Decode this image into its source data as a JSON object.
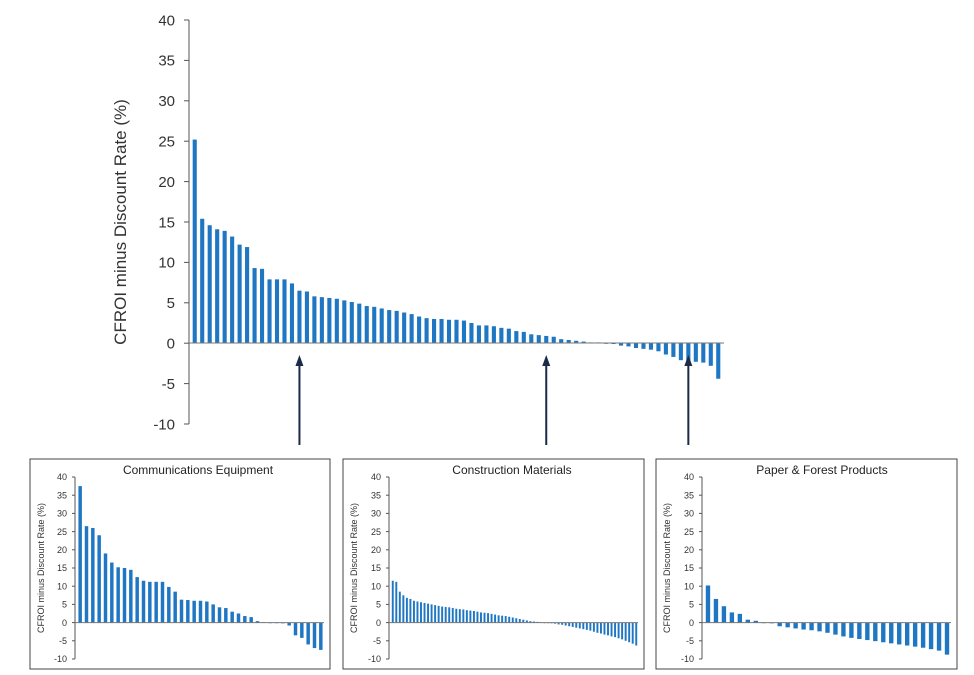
{
  "chart_data": [
    {
      "id": "main",
      "type": "bar",
      "title": "",
      "ylabel": "CFROI minus Discount Rate (%)",
      "ylim": [
        -10,
        40
      ],
      "yticks": [
        "40",
        "35",
        "30",
        "25",
        "20",
        "15",
        "10",
        "5",
        "0",
        "-5",
        "-10"
      ],
      "grid": false,
      "bar_color": "#1f77c4",
      "values": [
        25.2,
        15.4,
        14.6,
        14.1,
        13.9,
        13.2,
        12.2,
        11.9,
        9.3,
        9.2,
        7.9,
        7.9,
        7.9,
        7.4,
        6.5,
        6.4,
        5.8,
        5.7,
        5.6,
        5.5,
        5.3,
        5.1,
        4.9,
        4.6,
        4.5,
        4.3,
        4.1,
        4.0,
        3.8,
        3.6,
        3.3,
        3.1,
        3.0,
        3.0,
        2.9,
        2.9,
        2.8,
        2.5,
        2.2,
        2.2,
        2.1,
        1.9,
        1.8,
        1.5,
        1.4,
        1.1,
        1.0,
        0.9,
        0.8,
        0.5,
        0.4,
        0.3,
        0.2,
        0.1,
        0.1,
        0.0,
        -0.1,
        -0.3,
        -0.4,
        -0.6,
        -0.7,
        -0.8,
        -1.0,
        -1.4,
        -1.7,
        -2.1,
        -2.3,
        -2.3,
        -2.4,
        -2.8,
        -4.4
      ],
      "highlight_indices": [
        14,
        47,
        66
      ]
    },
    {
      "id": "comm",
      "type": "bar",
      "title": "Communications Equipment",
      "ylabel": "CFROI minus Discount Rate (%)",
      "ylim": [
        -10,
        40
      ],
      "yticks": [
        "40",
        "35",
        "30",
        "25",
        "20",
        "15",
        "10",
        "5",
        "0",
        "-5",
        "-10"
      ],
      "grid": false,
      "bar_color": "#1f77c4",
      "values": [
        37.5,
        26.5,
        26.0,
        24.0,
        19.0,
        16.5,
        15.2,
        15.0,
        14.5,
        12.5,
        11.5,
        11.2,
        11.2,
        11.2,
        9.8,
        8.5,
        6.3,
        6.2,
        6.0,
        6.0,
        5.8,
        5.0,
        4.2,
        4.0,
        3.0,
        2.5,
        1.8,
        1.5,
        0.4,
        0.1,
        -0.1,
        0.0,
        -0.2,
        -0.8,
        -3.5,
        -4.2,
        -6.0,
        -7.0,
        -7.5
      ]
    },
    {
      "id": "constr",
      "type": "bar",
      "title": "Construction Materials",
      "ylabel": "CFROI minus Discount Rate (%)",
      "ylim": [
        -10,
        40
      ],
      "yticks": [
        "40",
        "35",
        "30",
        "25",
        "20",
        "15",
        "10",
        "5",
        "0",
        "-5",
        "-10"
      ],
      "grid": false,
      "bar_color": "#1f77c4",
      "values": [
        11.5,
        11.2,
        8.5,
        7.5,
        6.8,
        6.5,
        6.0,
        5.8,
        5.6,
        5.4,
        5.2,
        5.0,
        4.8,
        4.6,
        4.4,
        4.3,
        4.2,
        4.0,
        3.8,
        3.7,
        3.6,
        3.4,
        3.3,
        3.2,
        3.0,
        2.8,
        2.7,
        2.6,
        2.4,
        2.2,
        2.0,
        1.9,
        1.8,
        1.6,
        1.4,
        1.2,
        1.0,
        0.8,
        0.6,
        0.4,
        0.3,
        0.2,
        0.1,
        0.0,
        -0.1,
        -0.2,
        -0.3,
        -0.5,
        -0.6,
        -0.8,
        -1.0,
        -1.2,
        -1.4,
        -1.6,
        -1.8,
        -2.0,
        -2.2,
        -2.5,
        -2.8,
        -3.0,
        -3.3,
        -3.5,
        -3.8,
        -4.0,
        -4.3,
        -4.6,
        -5.0,
        -5.4,
        -5.8,
        -6.3
      ]
    },
    {
      "id": "paper",
      "type": "bar",
      "title": "Paper & Forest Products",
      "ylabel": "CFROI minus Discount Rate (%)",
      "ylim": [
        -10,
        40
      ],
      "yticks": [
        "40",
        "35",
        "30",
        "25",
        "20",
        "15",
        "10",
        "5",
        "0",
        "-5",
        "-10"
      ],
      "grid": false,
      "bar_color": "#1f77c4",
      "values": [
        10.2,
        6.5,
        4.5,
        2.8,
        2.4,
        0.8,
        0.5,
        -0.1,
        -0.2,
        -1.0,
        -1.3,
        -1.6,
        -1.9,
        -2.1,
        -2.4,
        -2.8,
        -3.3,
        -3.8,
        -4.2,
        -4.5,
        -4.8,
        -5.1,
        -5.4,
        -5.7,
        -6.0,
        -6.3,
        -6.6,
        -6.9,
        -7.3,
        -7.7,
        -8.8
      ]
    }
  ]
}
